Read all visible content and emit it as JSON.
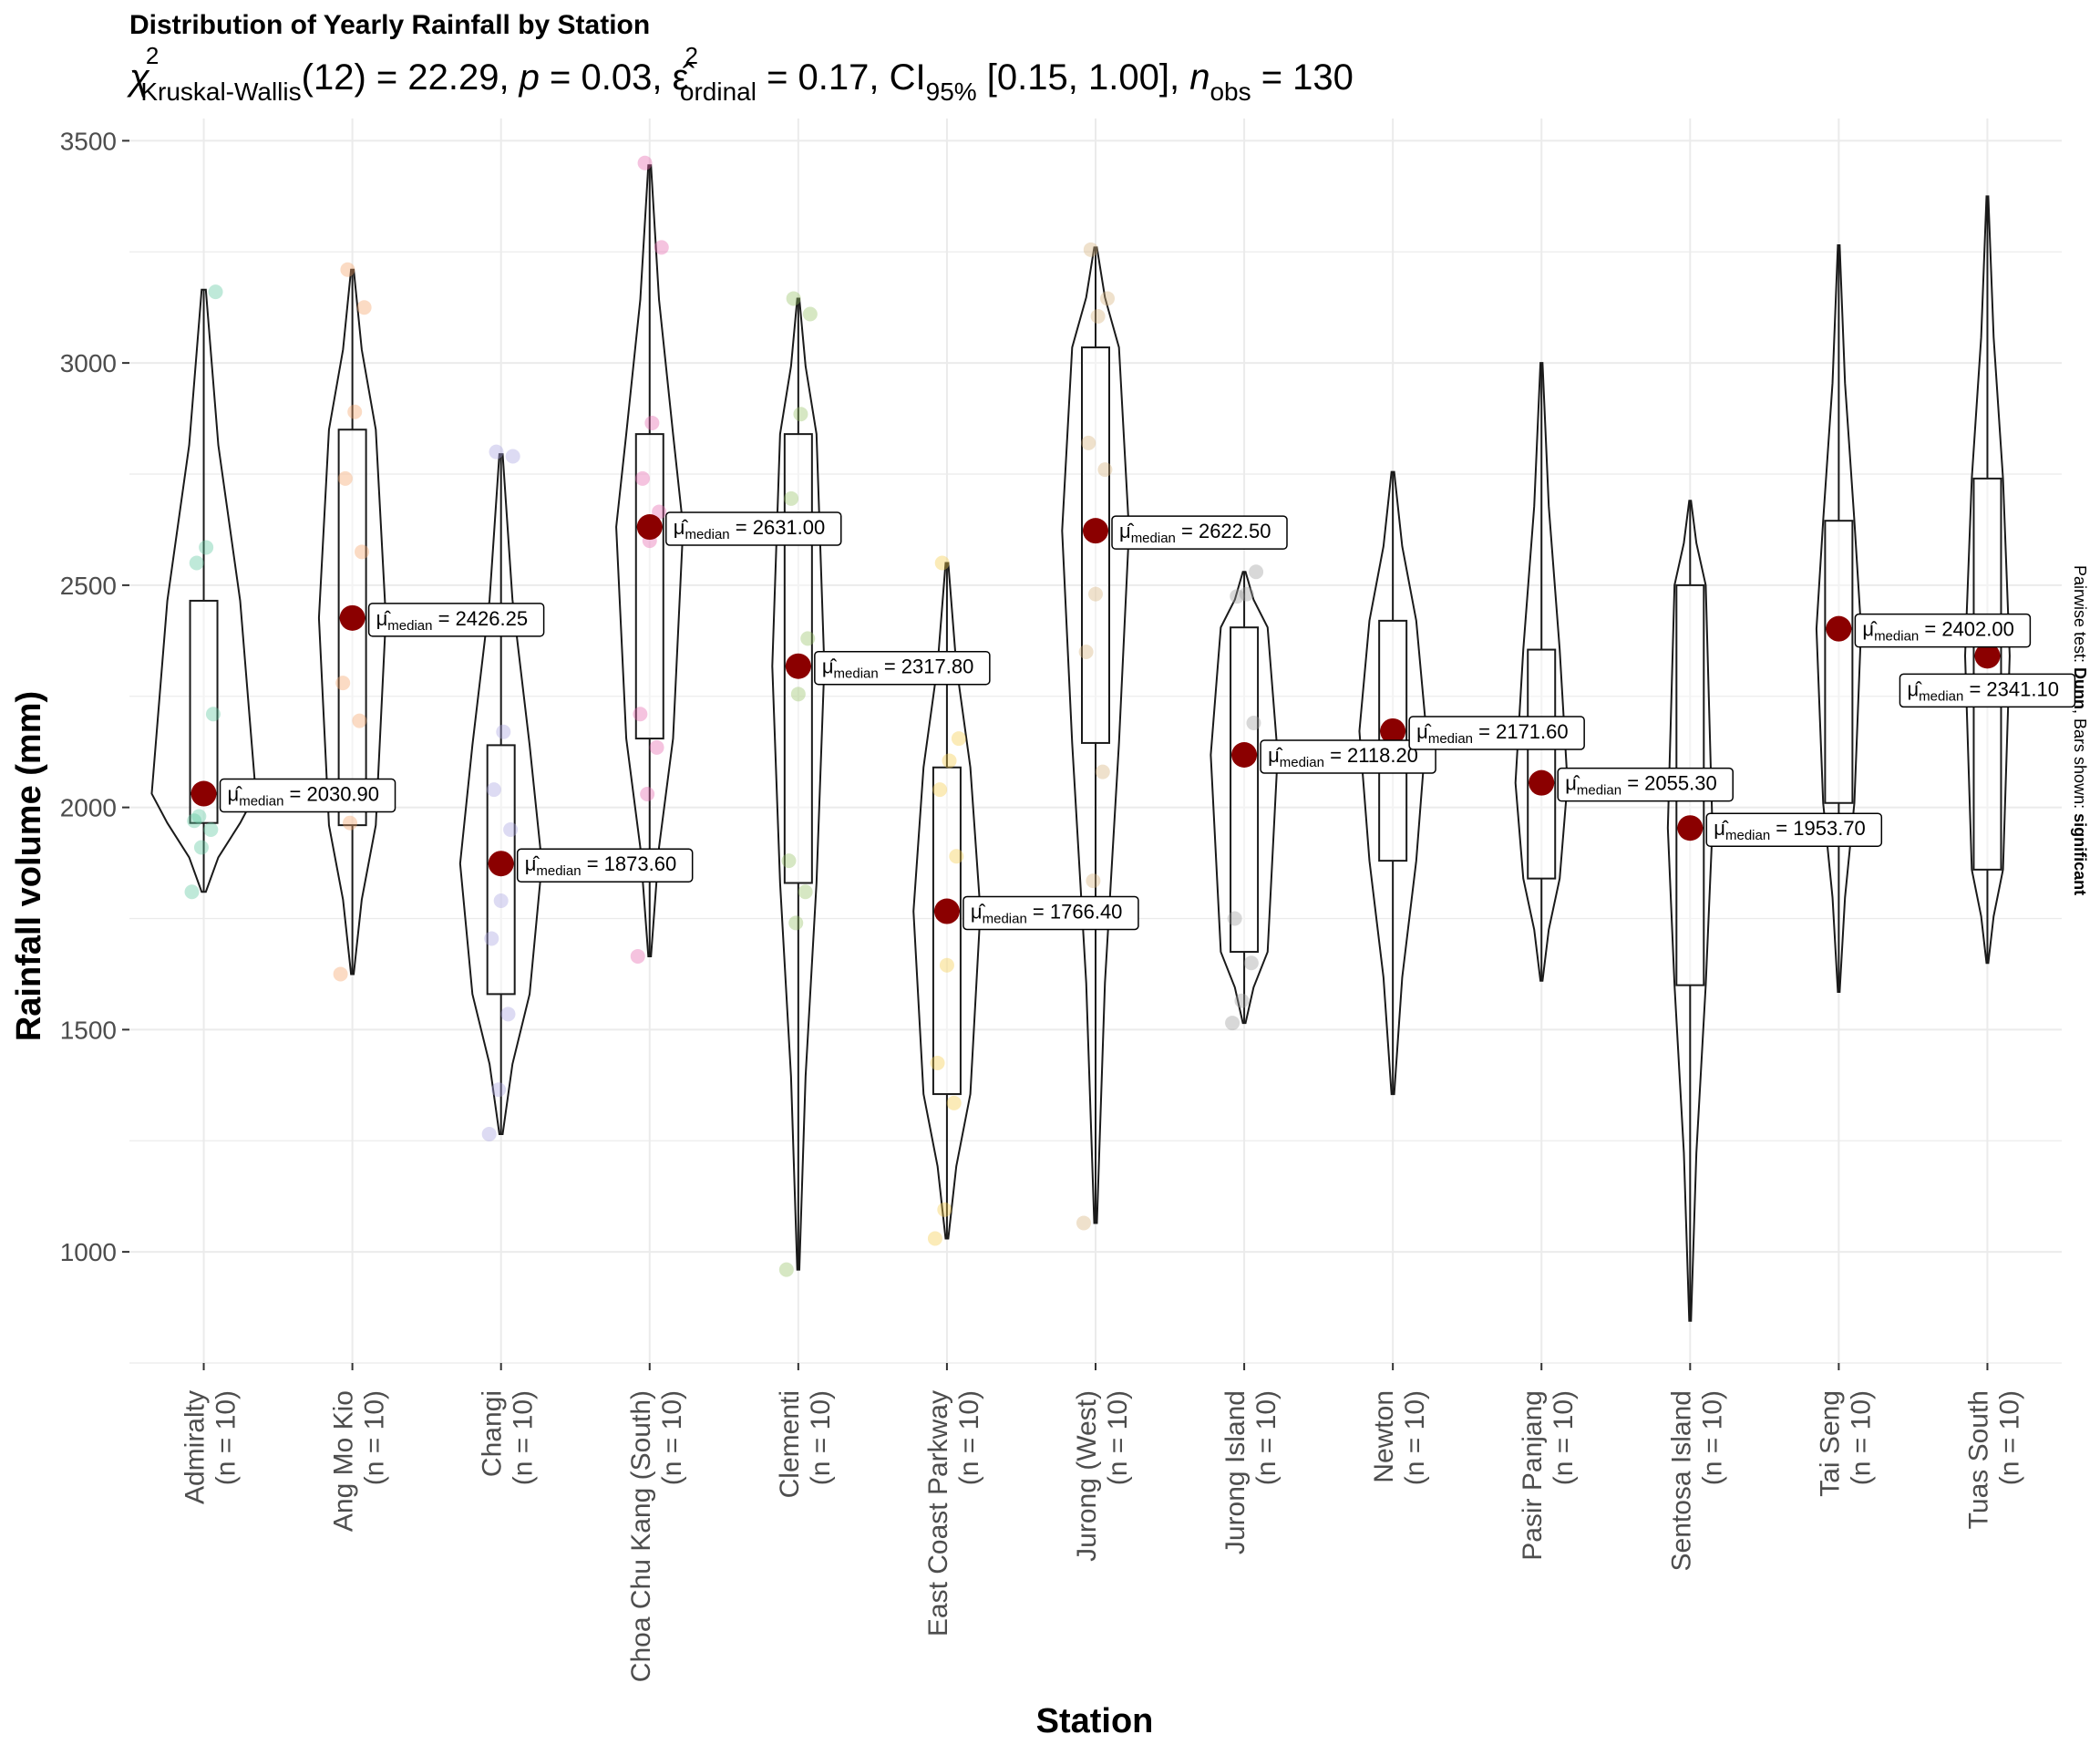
{
  "chart_data": {
    "type": "violin",
    "title": "Distribution of Yearly Rainfall by Station",
    "subtitle": {
      "stat_symbol": "χ",
      "stat_sup": "2",
      "stat_sub": "Kruskal-Wallis",
      "df_text": "(12) = 22.29, ",
      "p_symbol": "p",
      "p_text": " = 0.03, ",
      "eps_symbol": "ε̂",
      "eps_sup": "2",
      "eps_sub": "ordinal",
      "eps_text": " = 0.17, CI",
      "ci_sub": "95%",
      "ci_text": " [0.15, 1.00], ",
      "n_symbol": "n",
      "n_sub": "obs",
      "n_text": " = 130"
    },
    "xlabel": "Station",
    "ylabel": "Rainfall volume (mm)",
    "caption": {
      "prefix": "Pairwise test: ",
      "test": "Dunn",
      "middle": ", Bars shown: ",
      "shown": "significant"
    },
    "ylim": [
      750,
      3550
    ],
    "yticks": [
      1000,
      1500,
      2000,
      2500,
      3000,
      3500
    ],
    "grid": true,
    "median_label_prefix": "μ̂",
    "median_label_sub": "median",
    "stations": [
      {
        "name": "Admiralty",
        "n_label": "(n = 10)",
        "median": 2030.9,
        "median_label": " = 2030.90",
        "min": 1810,
        "max": 3165,
        "q1": 1965,
        "q3": 2465,
        "width": 0.7,
        "points": [
          1810,
          1910,
          1950,
          1970,
          2030,
          2210,
          2550,
          2585,
          3160,
          1980
        ],
        "color": "#5FC7A1"
      },
      {
        "name": "Ang Mo Kio",
        "n_label": "(n = 10)",
        "median": 2426.25,
        "median_label": " = 2426.25",
        "min": 1625,
        "max": 3210,
        "q1": 1960,
        "q3": 2850,
        "width": 0.45,
        "points": [
          1625,
          1965,
          2195,
          2280,
          2430,
          2575,
          2740,
          2890,
          3125,
          3210
        ],
        "color": "#F4A66B"
      },
      {
        "name": "Changi",
        "n_label": "(n = 10)",
        "median": 1873.6,
        "median_label": " = 1873.60",
        "min": 1265,
        "max": 2795,
        "q1": 1580,
        "q3": 2140,
        "width": 0.55,
        "points": [
          1265,
          1365,
          1535,
          1705,
          1790,
          1950,
          2040,
          2170,
          2790,
          2800
        ],
        "color": "#A9A6E0"
      },
      {
        "name": "Choa Chu Kang (South)",
        "n_label": "(n = 10)",
        "median": 2631.0,
        "median_label": " = 2631.00",
        "min": 1665,
        "max": 3445,
        "q1": 2155,
        "q3": 2840,
        "width": 0.45,
        "points": [
          1665,
          2030,
          2135,
          2210,
          2600,
          2665,
          2740,
          2865,
          3260,
          3450
        ],
        "color": "#E768AE"
      },
      {
        "name": "Clementi",
        "n_label": "(n = 10)",
        "median": 2317.8,
        "median_label": " = 2317.80",
        "min": 960,
        "max": 3145,
        "q1": 1830,
        "q3": 2840,
        "width": 0.35,
        "points": [
          960,
          1740,
          1810,
          1880,
          2255,
          2380,
          2695,
          2885,
          3110,
          3145
        ],
        "color": "#98C46A"
      },
      {
        "name": "East Coast Parkway",
        "n_label": "(n = 10)",
        "median": 1766.4,
        "median_label": " = 1766.40",
        "min": 1030,
        "max": 2550,
        "q1": 1355,
        "q3": 2090,
        "width": 0.45,
        "points": [
          1030,
          1095,
          1335,
          1425,
          1645,
          1890,
          2040,
          2105,
          2155,
          2550
        ],
        "color": "#F5CE4E"
      },
      {
        "name": "Jurong (West)",
        "n_label": "(n = 10)",
        "median": 2622.5,
        "median_label": " = 2622.50",
        "min": 1065,
        "max": 3260,
        "q1": 2145,
        "q3": 3035,
        "width": 0.45,
        "points": [
          1065,
          1835,
          2080,
          2350,
          2480,
          2760,
          2820,
          3105,
          3145,
          3255
        ],
        "color": "#D6B57F"
      },
      {
        "name": "Jurong Island",
        "n_label": "(n = 10)",
        "median": 2118.2,
        "median_label": " = 2118.20",
        "min": 1515,
        "max": 2530,
        "q1": 1675,
        "q3": 2405,
        "width": 0.45,
        "points": [
          1515,
          1565,
          1650,
          1750,
          2125,
          2190,
          2475,
          2480,
          2530,
          2120
        ],
        "color": "#9E9E9E"
      },
      {
        "name": "Newton",
        "n_label": "(n = 10)",
        "median": 2171.6,
        "median_label": " = 2171.60",
        "min": 1355,
        "max": 2755,
        "q1": 1880,
        "q3": 2420,
        "width": 0.45,
        "points": [],
        "color": "#9E9E9E"
      },
      {
        "name": "Pasir Panjang",
        "n_label": "(n = 10)",
        "median": 2055.3,
        "median_label": " = 2055.30",
        "min": 1610,
        "max": 3000,
        "q1": 1840,
        "q3": 2355,
        "width": 0.35,
        "points": [],
        "color": "#9E9E9E"
      },
      {
        "name": "Sentosa Island",
        "n_label": "(n = 10)",
        "median": 1953.7,
        "median_label": " = 1953.70",
        "min": 845,
        "max": 2690,
        "q1": 1600,
        "q3": 2500,
        "width": 0.3,
        "points": [],
        "color": "#9E9E9E"
      },
      {
        "name": "Tai Seng",
        "n_label": "(n = 10)",
        "median": 2402.0,
        "median_label": " = 2402.00",
        "min": 1585,
        "max": 3265,
        "q1": 2010,
        "q3": 2645,
        "width": 0.3,
        "points": [],
        "color": "#9E9E9E"
      },
      {
        "name": "Tuas South",
        "n_label": "(n = 10)",
        "median": 2341.1,
        "median_label": " = 2341.10",
        "min": 1650,
        "max": 3375,
        "q1": 1860,
        "q3": 2740,
        "width": 0.3,
        "points": [],
        "color": "#9E9E9E"
      }
    ],
    "colors": {
      "median_point": "#8B0000",
      "grid": "#EBEBEB",
      "outline": "#1a1a1a"
    }
  }
}
